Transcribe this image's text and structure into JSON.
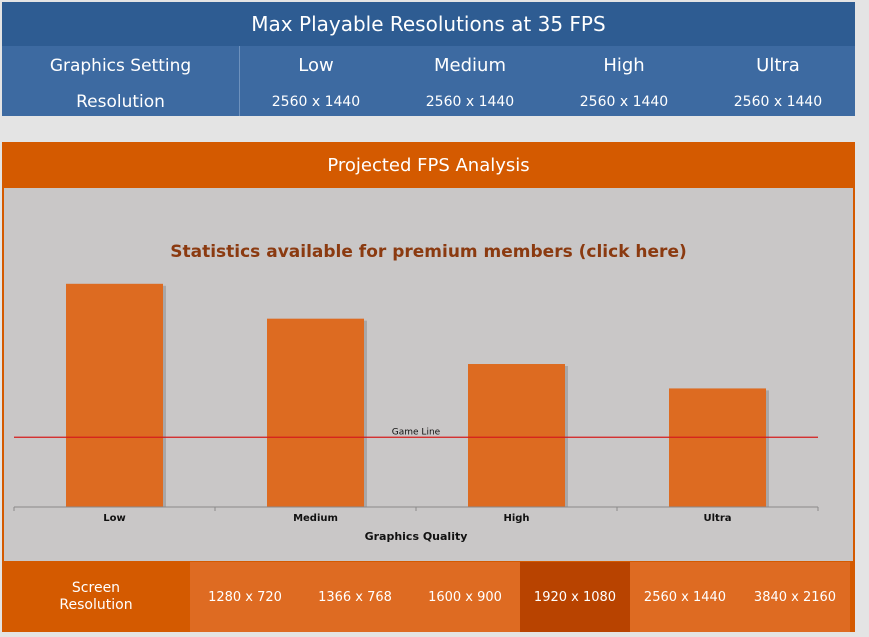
{
  "resolutions_panel": {
    "title": "Max Playable Resolutions at 35 FPS",
    "settings_label": "Graphics Setting",
    "resolution_label": "Resolution",
    "columns": [
      {
        "setting": "Low",
        "resolution": "2560 x 1440"
      },
      {
        "setting": "Medium",
        "resolution": "2560 x 1440"
      },
      {
        "setting": "High",
        "resolution": "2560 x 1440"
      },
      {
        "setting": "Ultra",
        "resolution": "2560 x 1440"
      }
    ]
  },
  "fps_panel": {
    "title": "Projected FPS Analysis",
    "premium_link": "Statistics available for premium members (click here)"
  },
  "chart_data": {
    "type": "bar",
    "categories": [
      "Low",
      "Medium",
      "High",
      "Ultra"
    ],
    "values": [
      3.2,
      2.7,
      2.05,
      1.7
    ],
    "xlabel": "Graphics Quality",
    "ylabel": "",
    "ylim": [
      0,
      4
    ],
    "reference_line": {
      "label": "Game Line",
      "value": 1.0,
      "color": "#d41c1c"
    },
    "bar_color": "#dd6b21",
    "grid": false
  },
  "resolution_bar": {
    "label_line1": "Screen",
    "label_line2": "Resolution",
    "selected": "1920 x 1080",
    "items": [
      "1280 x 720",
      "1366 x 768",
      "1600 x 900",
      "1920 x 1080",
      "2560 x 1440",
      "3840 x 2160"
    ]
  }
}
